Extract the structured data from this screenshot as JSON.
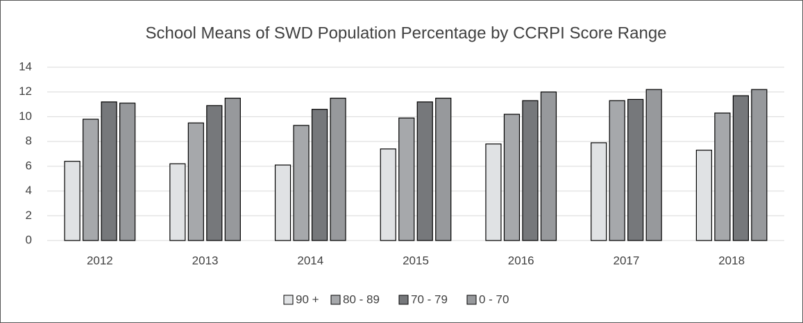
{
  "chart_data": {
    "type": "bar",
    "title": "School Means of SWD Population Percentage by CCRPI Score Range",
    "categories": [
      "2012",
      "2013",
      "2014",
      "2015",
      "2016",
      "2017",
      "2018"
    ],
    "series": [
      {
        "name": "90 +",
        "color": "#e0e2e4",
        "values": [
          6.4,
          6.2,
          6.1,
          7.4,
          7.8,
          7.9,
          7.3
        ]
      },
      {
        "name": "80 - 89",
        "color": "#a6a8ab",
        "values": [
          9.8,
          9.5,
          9.3,
          9.9,
          10.2,
          11.3,
          10.3
        ]
      },
      {
        "name": "70 - 79",
        "color": "#76787b",
        "values": [
          11.2,
          10.9,
          10.6,
          11.2,
          11.3,
          11.4,
          11.7
        ]
      },
      {
        "name": "0 - 70",
        "color": "#97999c",
        "values": [
          11.1,
          11.5,
          11.5,
          11.5,
          12.0,
          12.2,
          12.2
        ]
      }
    ],
    "ylim": [
      0,
      14
    ],
    "yticks": [
      0,
      2,
      4,
      6,
      8,
      10,
      12,
      14
    ],
    "grid": true,
    "legend": "bottom"
  }
}
